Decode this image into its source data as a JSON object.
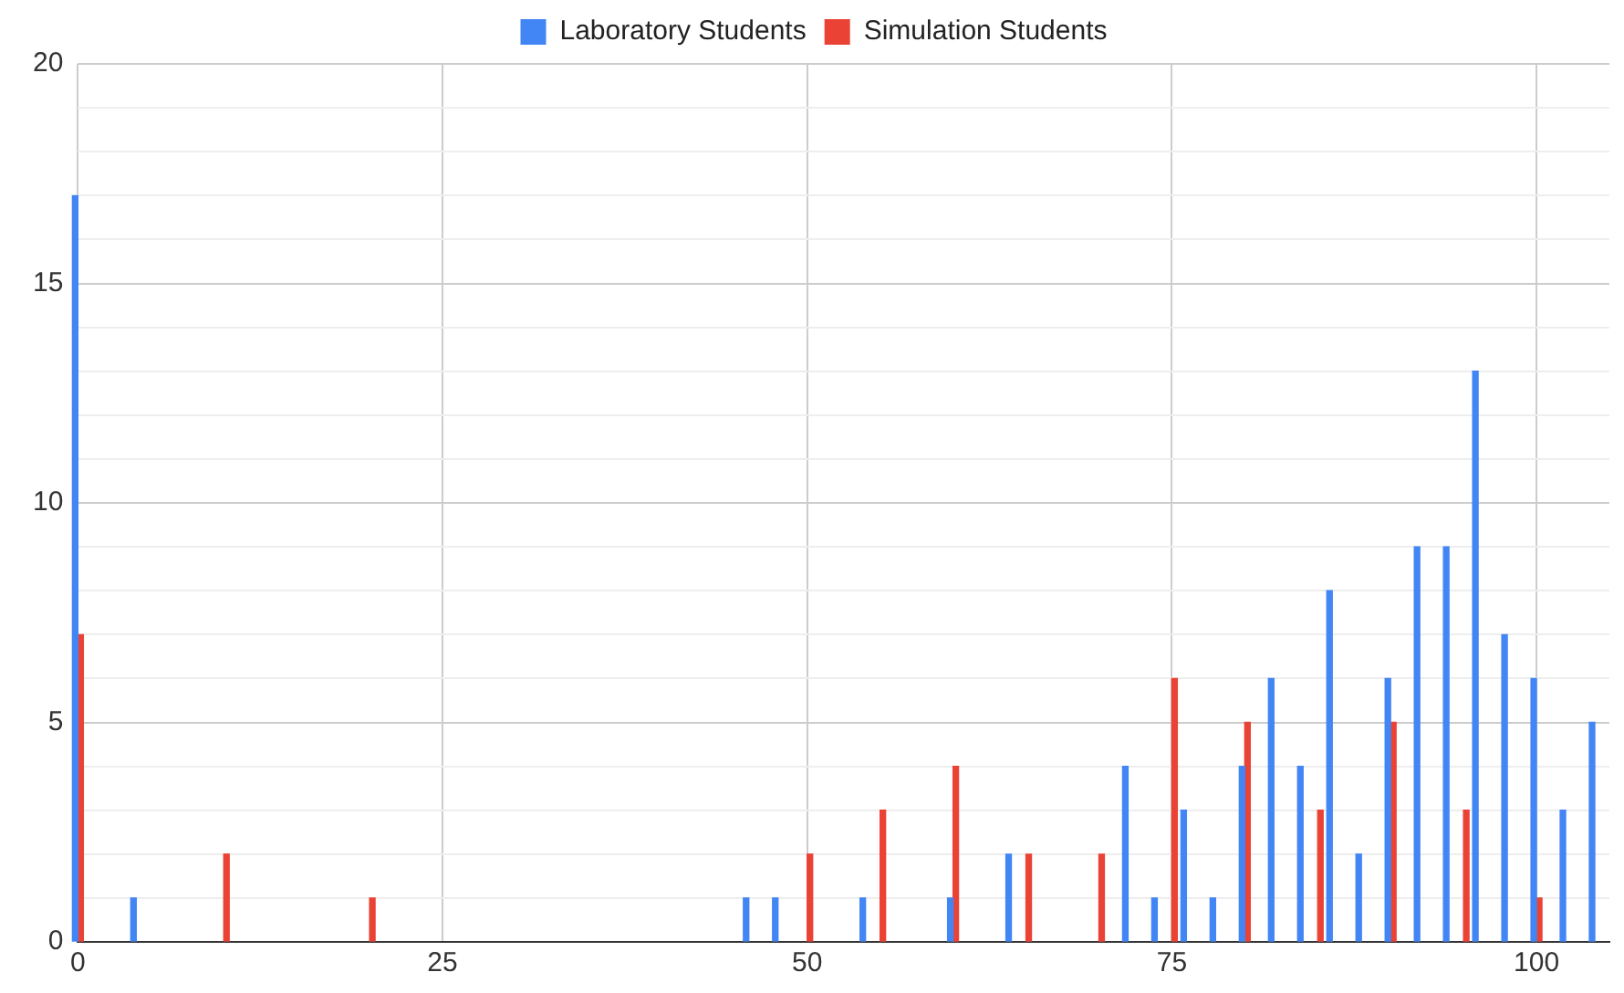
{
  "chart_data": {
    "type": "bar",
    "xlim": [
      0,
      105
    ],
    "xticks": [
      0,
      25,
      50,
      75,
      100
    ],
    "ylim": [
      0,
      20
    ],
    "yticks": [
      0,
      {
        "value": 1,
        "label": null
      },
      {
        "value": 2,
        "label": null
      },
      {
        "value": 3,
        "label": null
      },
      {
        "value": 4,
        "label": null
      },
      5,
      {
        "value": 6,
        "label": null
      },
      {
        "value": 7,
        "label": null
      },
      {
        "value": 8,
        "label": null
      },
      {
        "value": 9,
        "label": null
      },
      10,
      {
        "value": 11,
        "label": null
      },
      {
        "value": 12,
        "label": null
      },
      {
        "value": 13,
        "label": null
      },
      {
        "value": 14,
        "label": null
      },
      15,
      {
        "value": 16,
        "label": null
      },
      {
        "value": 17,
        "label": null
      },
      {
        "value": 18,
        "label": null
      },
      {
        "value": 19,
        "label": null
      },
      20
    ],
    "grid": true,
    "legend": "top",
    "series": [
      {
        "name": "Laboratory Students",
        "color": "#4285f4",
        "x": [
          0,
          4,
          46,
          48,
          54,
          60,
          64,
          72,
          74,
          76,
          78,
          80,
          82,
          84,
          86,
          88,
          90,
          92,
          94,
          96,
          98,
          100,
          102,
          104
        ],
        "values": [
          17,
          1,
          1,
          1,
          1,
          1,
          2,
          4,
          1,
          3,
          1,
          4,
          6,
          4,
          8,
          2,
          6,
          9,
          9,
          13,
          7,
          6,
          3,
          5
        ]
      },
      {
        "name": "Simulation Students",
        "color": "#ea4335",
        "x": [
          0,
          10,
          20,
          50,
          55,
          60,
          65,
          70,
          75,
          80,
          85,
          90,
          95,
          100
        ],
        "values": [
          7,
          2,
          1,
          2,
          3,
          4,
          2,
          2,
          6,
          5,
          3,
          5,
          3,
          1
        ]
      }
    ]
  }
}
